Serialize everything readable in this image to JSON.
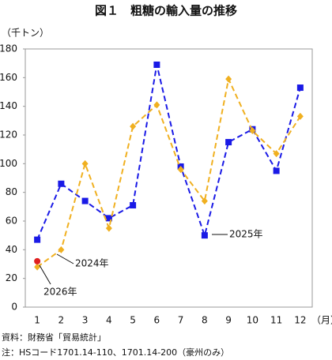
{
  "chart_data": {
    "type": "line",
    "title": "図１　粗糖の輸入量の推移",
    "y_label": "（千トン）",
    "x_label": "（月）",
    "categories": [
      "1",
      "2",
      "3",
      "4",
      "5",
      "6",
      "7",
      "8",
      "9",
      "10",
      "11",
      "12"
    ],
    "series": [
      {
        "name": "2025年",
        "color": "#1a1ae6",
        "marker": "square",
        "values": [
          47,
          86,
          74,
          62,
          71,
          169,
          98,
          50,
          115,
          124,
          95,
          153
        ]
      },
      {
        "name": "2024年",
        "color": "#f0b020",
        "marker": "diamond",
        "values": [
          28,
          40,
          100,
          55,
          126,
          141,
          96,
          74,
          159,
          123,
          107,
          133
        ]
      },
      {
        "name": "2026年",
        "color": "#e02020",
        "marker": "circle",
        "values": [
          32,
          null,
          null,
          null,
          null,
          null,
          null,
          null,
          null,
          null,
          null,
          null
        ]
      }
    ],
    "ylim": [
      0,
      180
    ],
    "yticks": [
      0,
      20,
      40,
      60,
      80,
      100,
      120,
      140,
      160,
      180
    ],
    "grid": false,
    "notes": [
      "資料：財務省「貿易統計」",
      "注：HSコード1701.14-110、1701.14-200（豪州のみ）"
    ]
  }
}
